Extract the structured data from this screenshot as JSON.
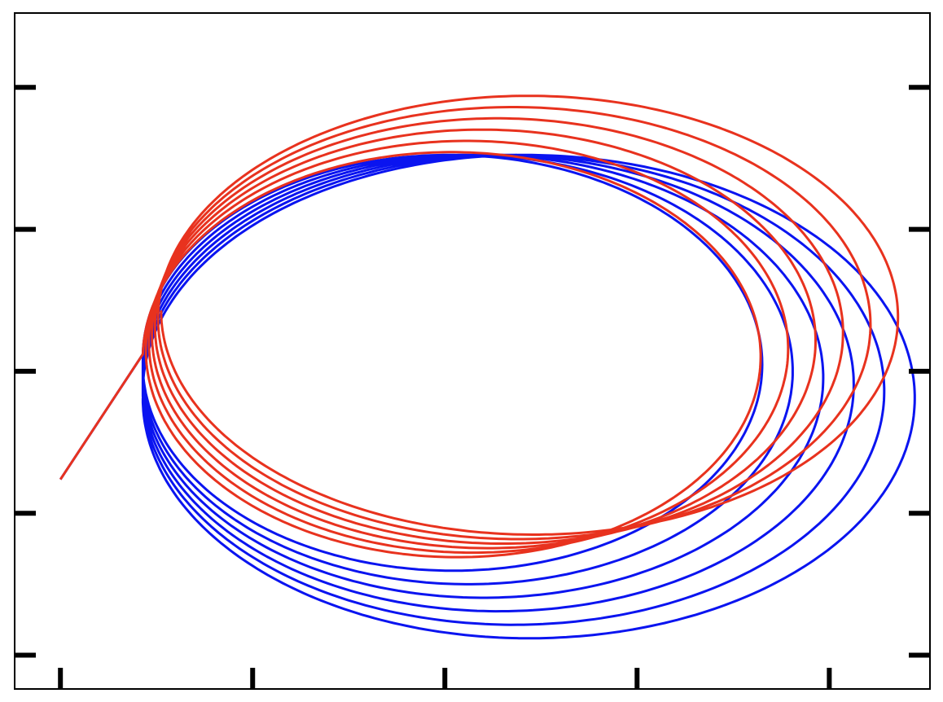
{
  "chart_data": {
    "type": "line",
    "title": "",
    "xlabel": "",
    "ylabel": "",
    "xlim": [
      0,
      1
    ],
    "ylim": [
      0,
      1
    ],
    "grid": false,
    "legend": "none",
    "x_ticks": [
      0.05,
      0.26,
      0.47,
      0.68,
      0.89
    ],
    "y_ticks": [
      0.05,
      0.26,
      0.47,
      0.68,
      0.89
    ],
    "series": [
      {
        "color": "#0a14f0",
        "loops": 6,
        "center_start": [
          0.47,
          0.49
        ],
        "center_end": [
          0.57,
          0.43
        ],
        "radius_x_start": 0.33,
        "radius_x_end": 0.43,
        "radius_y_start": 0.3,
        "radius_y_end": 0.36,
        "start": [
          0.05,
          0.31
        ]
      },
      {
        "color": "#e8321e",
        "loops": 6,
        "center_start": [
          0.47,
          0.49
        ],
        "center_end": [
          0.57,
          0.56
        ],
        "radius_x_start": 0.33,
        "radius_x_end": 0.41,
        "radius_y_start": 0.3,
        "radius_y_end": 0.33,
        "start": [
          0.05,
          0.31
        ]
      }
    ]
  }
}
